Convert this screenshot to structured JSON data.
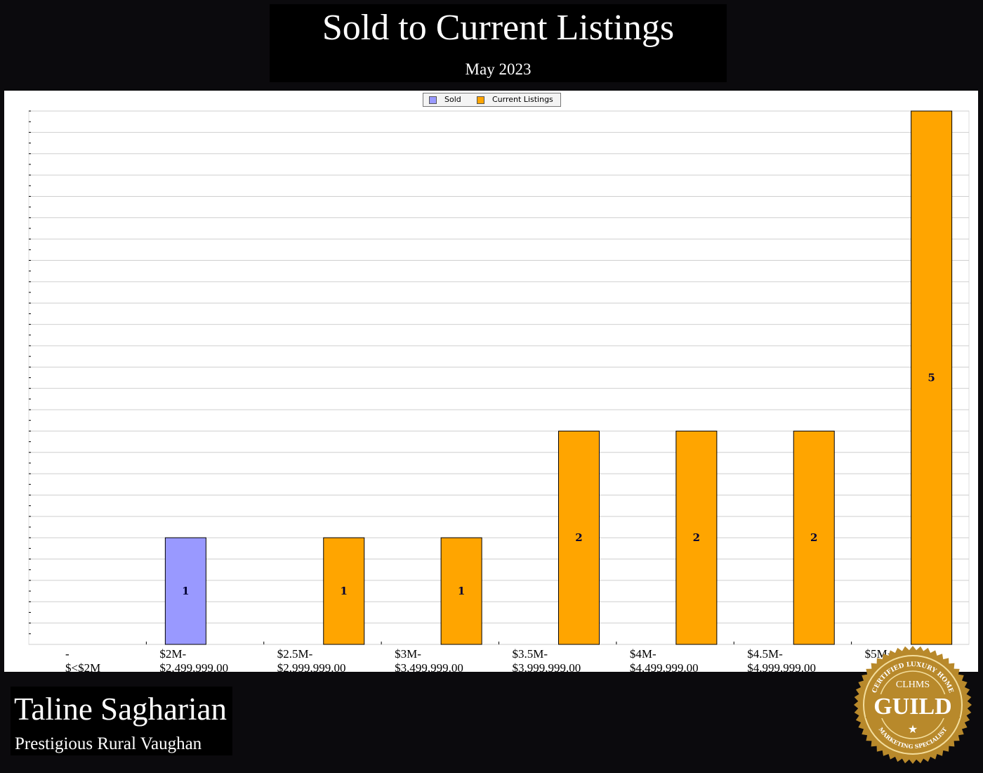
{
  "header": {
    "title": "Sold to Current Listings",
    "subtitle": "May 2023"
  },
  "agent": {
    "name": "Taline Sagharian",
    "office": "Prestigious Rural Vaughan"
  },
  "logo": {
    "text_top": "CERTIFIED LUXURY HOME",
    "text_mid": "CLHMS",
    "text_main": "GUILD",
    "text_bottom": "MARKETING SPECIALIST",
    "color": "#b8892b"
  },
  "chart_data": {
    "type": "bar",
    "title": "",
    "xlabel": "",
    "ylabel": "",
    "categories": [
      [
        "-",
        "$<$2M"
      ],
      [
        "$2M-",
        "$2,499,999.00"
      ],
      [
        "$2.5M-",
        "$2,999,999.00"
      ],
      [
        "$3M-",
        "$3,499,999.00"
      ],
      [
        "$3.5M-",
        "$3,999,999.00"
      ],
      [
        "$4M-",
        "$4,499,999.00"
      ],
      [
        "$4.5M-",
        "$4,999,999.00"
      ],
      [
        "$5M+",
        ""
      ]
    ],
    "series": [
      {
        "name": "Sold",
        "color": "#9999ff",
        "values": [
          0,
          1,
          0,
          0,
          0,
          0,
          0,
          0
        ]
      },
      {
        "name": "Current Listings",
        "color": "#ffa500",
        "values": [
          0,
          0,
          1,
          1,
          2,
          2,
          2,
          5
        ]
      }
    ],
    "ylim": [
      0,
      5
    ],
    "grid": true,
    "legend": "top-center",
    "data_labels": true
  }
}
